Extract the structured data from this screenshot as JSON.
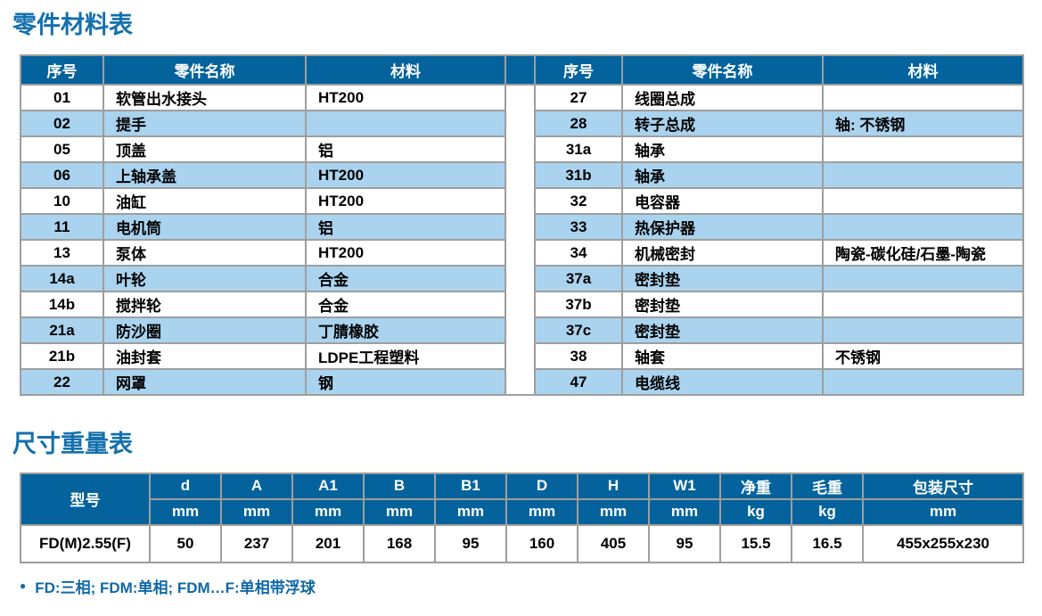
{
  "titles": {
    "parts": "零件材料表",
    "dims": "尺寸重量表"
  },
  "parts_table": {
    "headers": {
      "no": "序号",
      "name": "零件名称",
      "material": "材料"
    },
    "left_rows": [
      {
        "no": "01",
        "name": "软管出水接头",
        "material": "HT200"
      },
      {
        "no": "02",
        "name": "提手",
        "material": ""
      },
      {
        "no": "05",
        "name": "顶盖",
        "material": "铝"
      },
      {
        "no": "06",
        "name": "上轴承盖",
        "material": "HT200"
      },
      {
        "no": "10",
        "name": "油缸",
        "material": "HT200"
      },
      {
        "no": "11",
        "name": "电机筒",
        "material": "铝"
      },
      {
        "no": "13",
        "name": "泵体",
        "material": "HT200"
      },
      {
        "no": "14a",
        "name": "叶轮",
        "material": "合金"
      },
      {
        "no": "14b",
        "name": "搅拌轮",
        "material": "合金"
      },
      {
        "no": "21a",
        "name": "防沙圈",
        "material": "丁腈橡胶"
      },
      {
        "no": "21b",
        "name": "油封套",
        "material": "LDPE工程塑料"
      },
      {
        "no": "22",
        "name": "网罩",
        "material": "钢"
      }
    ],
    "right_rows": [
      {
        "no": "27",
        "name": "线圈总成",
        "material": ""
      },
      {
        "no": "28",
        "name": "转子总成",
        "material": "轴: 不锈钢"
      },
      {
        "no": "31a",
        "name": "轴承",
        "material": ""
      },
      {
        "no": "31b",
        "name": "轴承",
        "material": ""
      },
      {
        "no": "32",
        "name": "电容器",
        "material": ""
      },
      {
        "no": "33",
        "name": "热保护器",
        "material": ""
      },
      {
        "no": "34",
        "name": "机械密封",
        "material": "陶瓷-碳化硅/石墨-陶瓷"
      },
      {
        "no": "37a",
        "name": "密封垫",
        "material": ""
      },
      {
        "no": "37b",
        "name": "密封垫",
        "material": ""
      },
      {
        "no": "37c",
        "name": "密封垫",
        "material": ""
      },
      {
        "no": "38",
        "name": "轴套",
        "material": "不锈钢"
      },
      {
        "no": "47",
        "name": "电缆线",
        "material": ""
      }
    ]
  },
  "dims_table": {
    "model_header": "型号",
    "columns": [
      {
        "label": "d",
        "unit": "mm"
      },
      {
        "label": "A",
        "unit": "mm"
      },
      {
        "label": "A1",
        "unit": "mm"
      },
      {
        "label": "B",
        "unit": "mm"
      },
      {
        "label": "B1",
        "unit": "mm"
      },
      {
        "label": "D",
        "unit": "mm"
      },
      {
        "label": "H",
        "unit": "mm"
      },
      {
        "label": "W1",
        "unit": "mm"
      },
      {
        "label": "净重",
        "unit": "kg"
      },
      {
        "label": "毛重",
        "unit": "kg"
      },
      {
        "label": "包装尺寸",
        "unit": "mm"
      }
    ],
    "rows": [
      {
        "model": "FD(M)2.55(F)",
        "values": [
          "50",
          "237",
          "201",
          "168",
          "95",
          "160",
          "405",
          "95",
          "15.5",
          "16.5",
          "455x255x230"
        ]
      }
    ]
  },
  "footnote": {
    "bullet": "●",
    "text": "FD:三相; FDM:单相; FDM…F:单相带浮球"
  },
  "colors": {
    "header_bg": "#04639C",
    "row_alt": "#A9D3EE",
    "grid_border": "#9E9E9E",
    "title_blue": "#1470AE",
    "footnote_blue": "#0F68A8",
    "body_text": "#000000"
  }
}
